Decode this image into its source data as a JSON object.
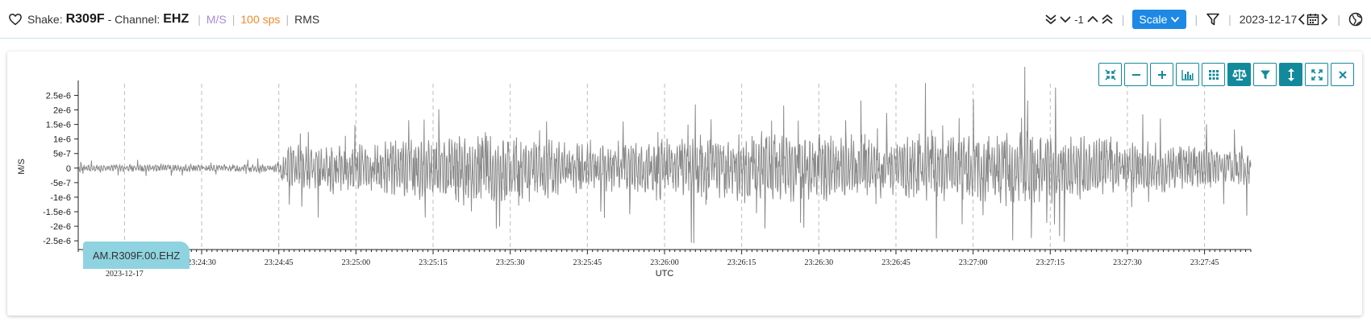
{
  "header": {
    "shake_label": "Shake:",
    "station": "R309F",
    "channel_label": "- Channel:",
    "channel": "EHZ",
    "units": "M/S",
    "rate": "100 sps",
    "mode": "RMS",
    "step_value": "-1",
    "scale_label": "Scale",
    "date": "2023-12-17"
  },
  "toolbar": {
    "buttons": [
      "collapse",
      "zoom-out",
      "zoom-in",
      "histogram",
      "grid",
      "balance",
      "filter",
      "vertical-scale",
      "expand",
      "close"
    ],
    "active": [
      "balance",
      "vertical-scale"
    ]
  },
  "station_tag": "AM.R309F.00.EHZ",
  "chart_data": {
    "type": "line",
    "title": "",
    "xlabel": "UTC",
    "ylabel": "M/S",
    "x_date_label": "2023-12-17",
    "x_range": [
      "23:24:06",
      "23:27:54"
    ],
    "x_ticks": [
      "23:24:15",
      "23:24:30",
      "23:24:45",
      "23:25:00",
      "23:25:15",
      "23:25:30",
      "23:25:45",
      "23:26:00",
      "23:26:15",
      "23:26:30",
      "23:26:45",
      "23:27:00",
      "23:27:15",
      "23:27:30",
      "23:27:45"
    ],
    "y_ticks": [
      "2.5e-6",
      "2e-6",
      "1.5e-6",
      "1e-6",
      "5e-7",
      "0",
      "-5e-7",
      "-1e-6",
      "-1.5e-6",
      "-2e-6",
      "-2.5e-6"
    ],
    "ylim": [
      -2.8e-06,
      2.9e-06
    ],
    "grid": "vertical-dashed",
    "series": [
      {
        "color": "#8a8a8a",
        "envelope": [
          {
            "t": "23:24:06",
            "amp": 2.5e-07
          },
          {
            "t": "23:24:44",
            "amp": 2.5e-07
          },
          {
            "t": "23:24:47",
            "amp": 1.5e-06
          },
          {
            "t": "23:25:10",
            "amp": 2e-06
          },
          {
            "t": "23:25:20",
            "amp": 2.5e-06
          },
          {
            "t": "23:25:45",
            "amp": 1.6e-06
          },
          {
            "t": "23:26:15",
            "amp": 2.4e-06
          },
          {
            "t": "23:26:45",
            "amp": 2e-06
          },
          {
            "t": "23:27:10",
            "amp": 2.6e-06
          },
          {
            "t": "23:27:30",
            "amp": 1.8e-06
          },
          {
            "t": "23:27:54",
            "amp": 1.3e-06
          }
        ]
      }
    ]
  }
}
